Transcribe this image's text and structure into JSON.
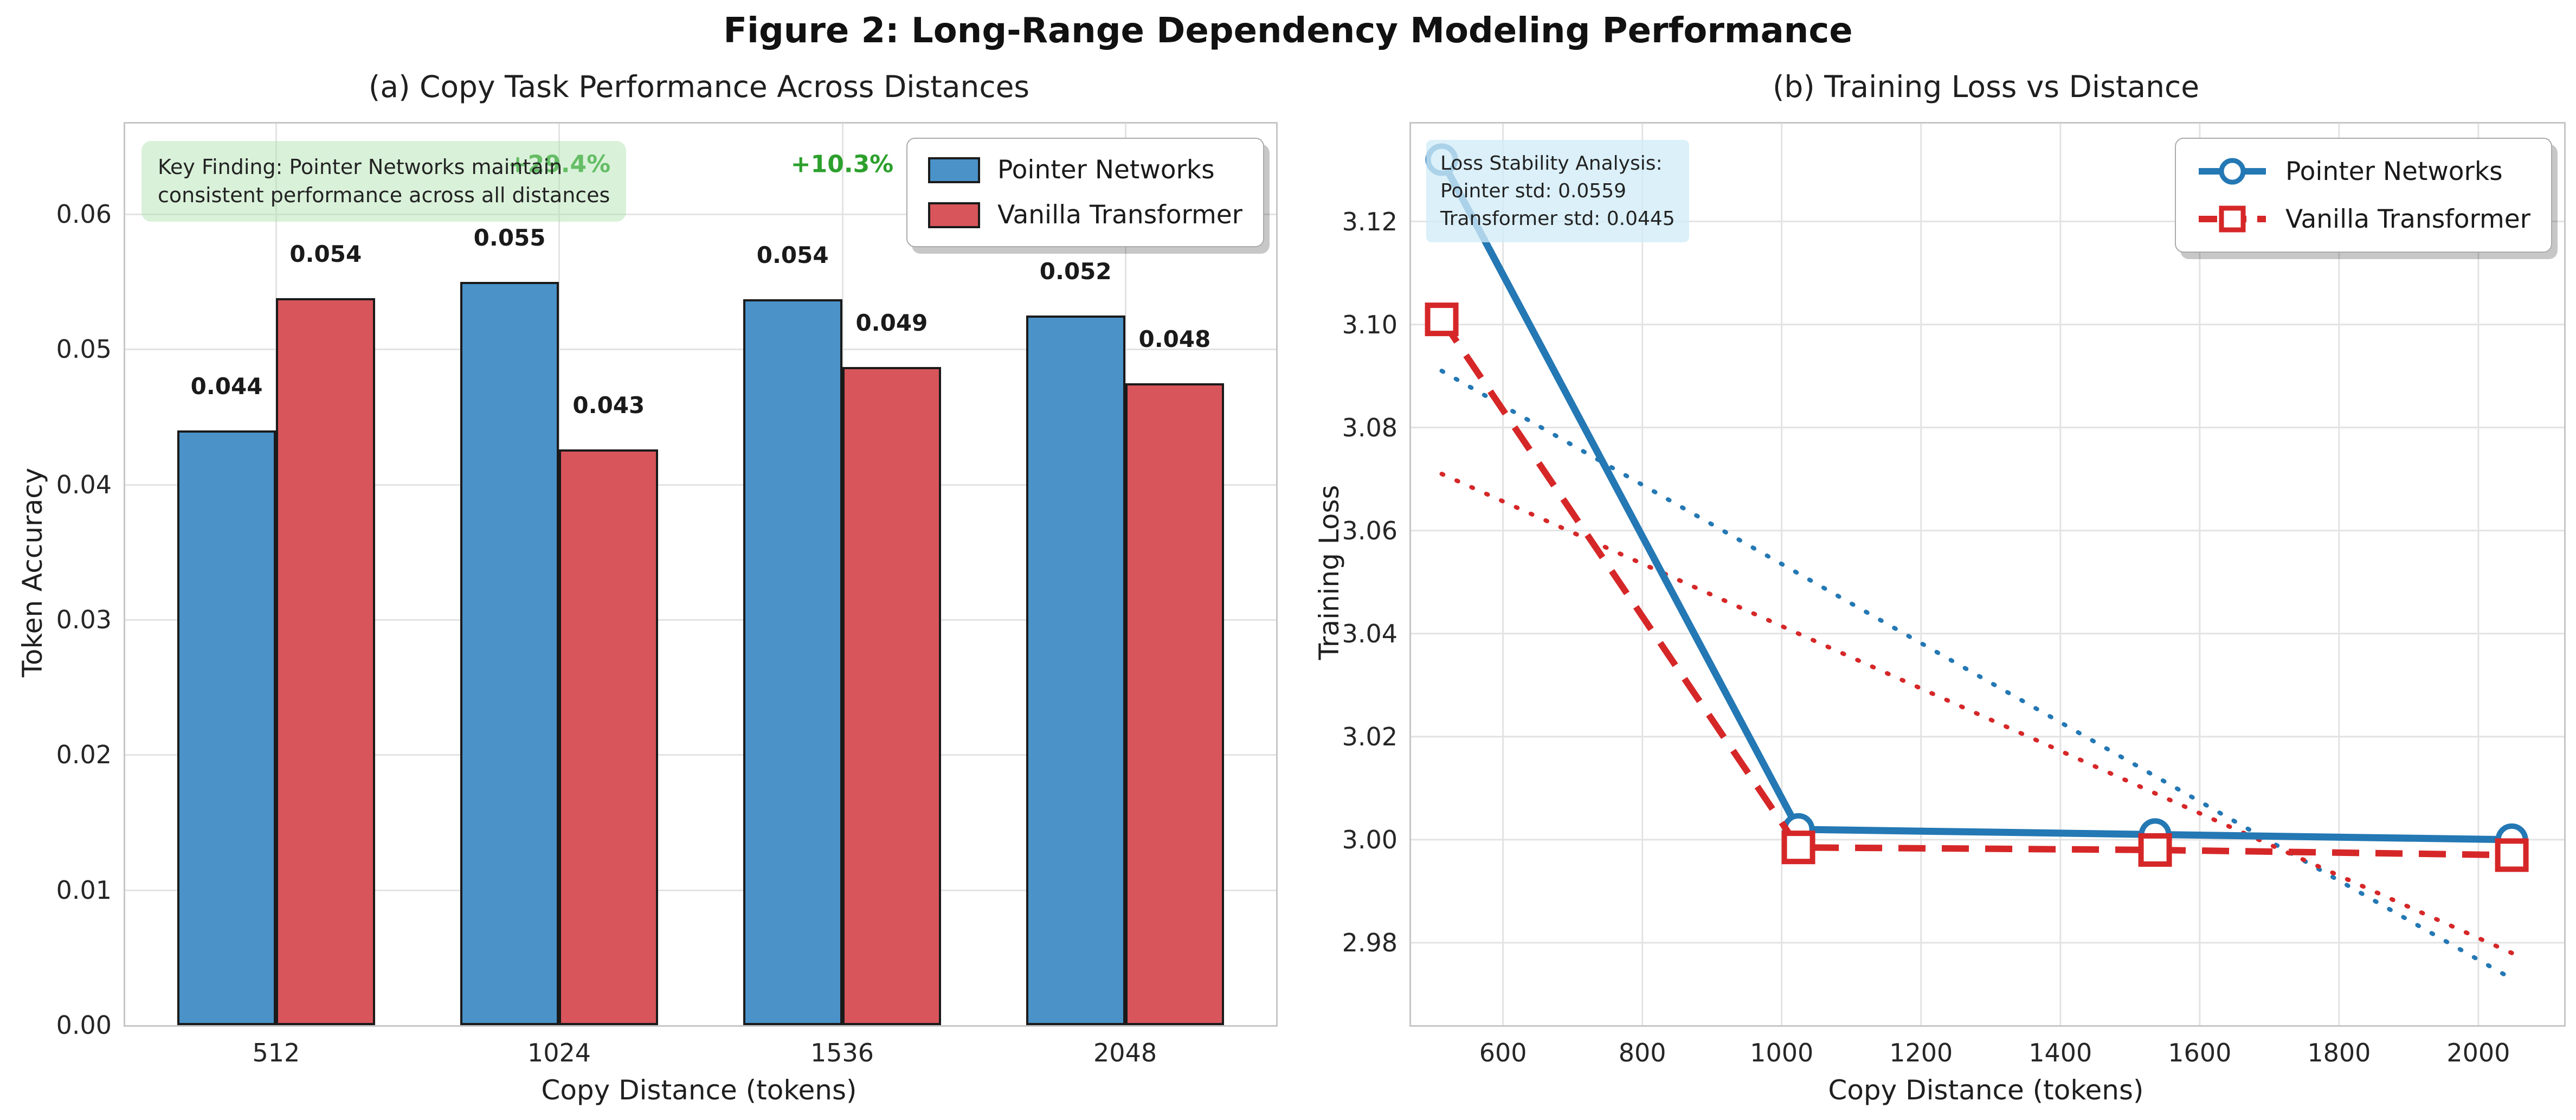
{
  "figure": {
    "title": "Figure 2: Long-Range Dependency Modeling Performance"
  },
  "colors": {
    "bar_blue": "#4a92c8",
    "bar_red": "#d8555b",
    "line_blue": "#2478b4",
    "line_red": "#d62728",
    "improvement_green": "#2ca02c",
    "key_finding_bg": "#d9efd9",
    "stability_bg": "#ddeef8",
    "grid": "#e3e3e3",
    "spine": "#c6c6c6",
    "bar_edge": "#1a1a1a"
  },
  "chart_data": [
    {
      "type": "bar",
      "title": "(a) Copy Task Performance Across Distances",
      "xlabel": "Copy Distance (tokens)",
      "ylabel": "Token Accuracy",
      "categories": [
        "512",
        "1024",
        "1536",
        "2048"
      ],
      "series": [
        {
          "name": "Pointer Networks",
          "color": "#4a92c8",
          "values": [
            0.044,
            0.055,
            0.054,
            0.052
          ],
          "labels": [
            "0.044",
            "0.055",
            "0.054",
            "0.052"
          ],
          "bar_heights": [
            0.044,
            0.055,
            0.0537,
            0.0525
          ]
        },
        {
          "name": "Vanilla Transformer",
          "color": "#d8555b",
          "values": [
            0.054,
            0.043,
            0.049,
            0.048
          ],
          "labels": [
            "0.054",
            "0.043",
            "0.049",
            "0.048"
          ],
          "bar_heights": [
            0.0538,
            0.0426,
            0.0487,
            0.0475
          ]
        }
      ],
      "yticks": [
        "0.00",
        "0.01",
        "0.02",
        "0.03",
        "0.04",
        "0.05",
        "0.06"
      ],
      "ylim": [
        0,
        0.0667
      ],
      "grid": true,
      "legend_position": "upper right",
      "annotations": {
        "key_finding_lines": [
          "Key Finding: Pointer Networks maintain",
          "consistent performance across all distances"
        ],
        "improvements": [
          {
            "label": "+29.4%",
            "category": "1024",
            "y_value": 0.0637
          },
          {
            "label": "+10.3%",
            "category": "1536",
            "y_value": 0.0637
          }
        ],
        "improvement_color": "#2ca02c"
      }
    },
    {
      "type": "line",
      "title": "(b) Training Loss vs Distance",
      "xlabel": "Copy Distance (tokens)",
      "ylabel": "Training Loss",
      "x": [
        512,
        1024,
        1536,
        2048
      ],
      "series": [
        {
          "name": "Pointer Networks",
          "color": "#2478b4",
          "style": "solid",
          "marker": "circle",
          "values": [
            3.132,
            3.002,
            3.001,
            3.0
          ]
        },
        {
          "name": "Vanilla Transformer",
          "color": "#d62728",
          "style": "dashed",
          "marker": "square",
          "values": [
            3.101,
            2.9985,
            2.998,
            2.997
          ]
        }
      ],
      "trend_lines": [
        {
          "series": "Pointer Networks",
          "color": "#2478b4",
          "style": "dotted",
          "x": [
            512,
            2048
          ],
          "values": [
            3.091,
            2.973
          ]
        },
        {
          "series": "Vanilla Transformer",
          "color": "#d62728",
          "style": "dotted",
          "x": [
            512,
            2048
          ],
          "values": [
            3.071,
            2.978
          ]
        }
      ],
      "xticks": [
        "600",
        "800",
        "1000",
        "1200",
        "1400",
        "1600",
        "1800",
        "2000"
      ],
      "yticks": [
        "3.12",
        "3.10",
        "3.08",
        "3.06",
        "3.04",
        "3.02",
        "3.00",
        "2.98"
      ],
      "xlim": [
        468,
        2123
      ],
      "ylim": [
        2.964,
        3.139
      ],
      "grid": true,
      "legend_position": "upper right",
      "annotation_lines": [
        "Loss Stability Analysis:",
        "Pointer std: 0.0559",
        "Transformer std: 0.0445"
      ]
    }
  ]
}
